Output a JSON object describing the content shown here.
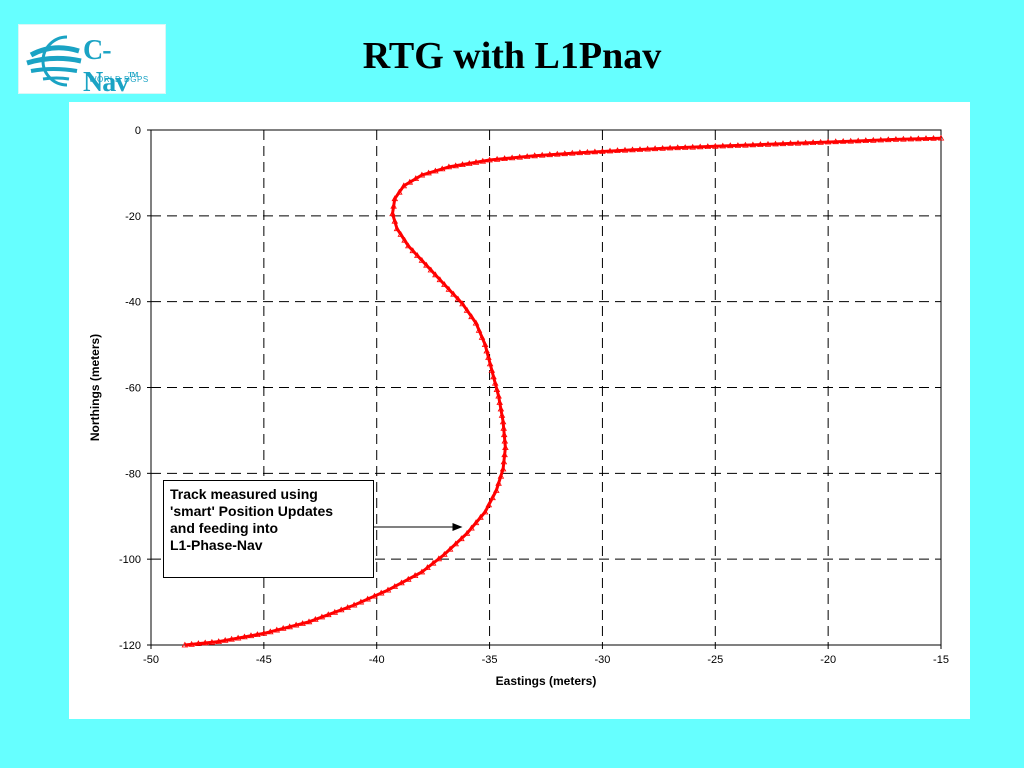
{
  "logo": {
    "brand": "C-Nav",
    "trademark": "TM",
    "tagline": "WORLD DGPS",
    "color": "#1aa3c4"
  },
  "slide": {
    "title": "RTG with L1Pnav",
    "background": "#66ffff"
  },
  "chart_data": {
    "type": "line",
    "xlabel": "Eastings (meters)",
    "ylabel": "Northings (meters)",
    "xlim": [
      -50,
      -15
    ],
    "ylim": [
      -120,
      0
    ],
    "xticks": [
      -50,
      -45,
      -40,
      -35,
      -30,
      -25,
      -20,
      -15
    ],
    "yticks": [
      0,
      -20,
      -40,
      -60,
      -80,
      -100,
      -120
    ],
    "grid": "dashed",
    "series": [
      {
        "color": "#ff0000",
        "marker": "triangle",
        "points": [
          [
            -48.5,
            -120
          ],
          [
            -47,
            -119.2
          ],
          [
            -45,
            -117.3
          ],
          [
            -43,
            -114.6
          ],
          [
            -41,
            -110.7
          ],
          [
            -39.5,
            -107.2
          ],
          [
            -38,
            -103
          ],
          [
            -37,
            -98.9
          ],
          [
            -36,
            -94
          ],
          [
            -35.2,
            -89
          ],
          [
            -34.7,
            -84
          ],
          [
            -34.4,
            -79
          ],
          [
            -34.3,
            -74
          ],
          [
            -34.4,
            -68
          ],
          [
            -34.6,
            -62
          ],
          [
            -34.9,
            -56
          ],
          [
            -35.2,
            -50
          ],
          [
            -35.6,
            -45
          ],
          [
            -36.2,
            -40.5
          ],
          [
            -37,
            -36
          ],
          [
            -37.8,
            -31.5
          ],
          [
            -38.6,
            -27
          ],
          [
            -39.1,
            -23
          ],
          [
            -39.3,
            -19.5
          ],
          [
            -39.2,
            -16
          ],
          [
            -38.8,
            -13
          ],
          [
            -38,
            -10.5
          ],
          [
            -36.8,
            -8.6
          ],
          [
            -35,
            -7
          ],
          [
            -33,
            -6
          ],
          [
            -31,
            -5.3
          ],
          [
            -29,
            -4.7
          ],
          [
            -27,
            -4.2
          ],
          [
            -25,
            -3.8
          ],
          [
            -23,
            -3.4
          ],
          [
            -21,
            -3
          ],
          [
            -19,
            -2.6
          ],
          [
            -17,
            -2.2
          ],
          [
            -15,
            -1.9
          ]
        ]
      }
    ],
    "annotation": {
      "text": "Track measured using\n'smart' Position Updates\nand feeding into\nL1-Phase-Nav",
      "arrow_to": [
        -36.2,
        -92.5
      ]
    }
  }
}
